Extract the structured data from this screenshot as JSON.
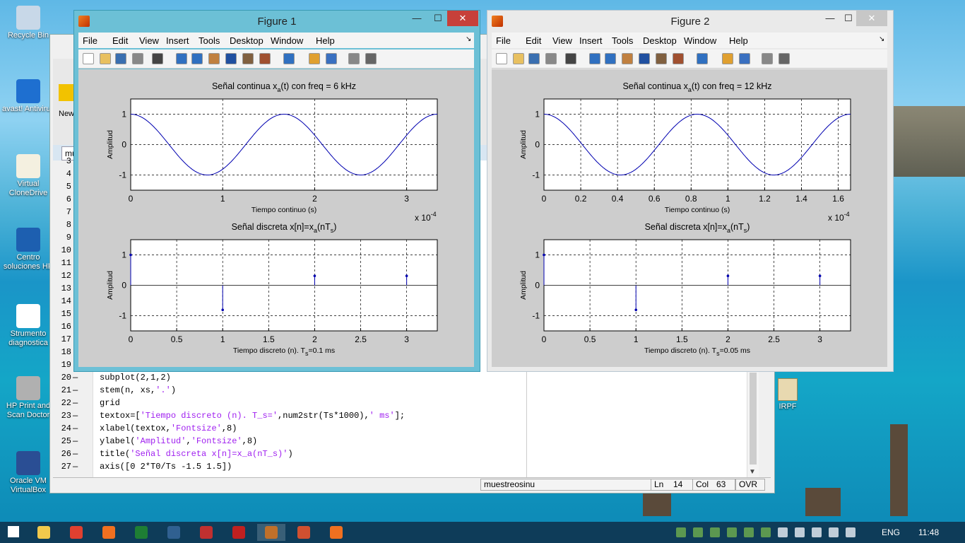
{
  "desktop": {
    "icons": [
      {
        "label": "Recycle Bin",
        "icon": "recycle-bin-icon",
        "color": "#c8d8e8"
      },
      {
        "label": "avast! Antivirus",
        "icon": "avast-icon",
        "color": "#1e6fd0"
      },
      {
        "label": "Virtual CloneDrive",
        "icon": "sheep-icon",
        "color": "#f4f0e0"
      },
      {
        "label": "Centro soluciones HP",
        "icon": "hp-icon",
        "color": "#1d5fb0"
      },
      {
        "label": "Strumento diagnostica",
        "icon": "document-icon",
        "color": "#ffffff"
      },
      {
        "label": "HP Print and Scan Doctor",
        "icon": "printer-icon",
        "color": "#b0b0b0"
      },
      {
        "label": "Oracle VM VirtualBox",
        "icon": "virtualbox-icon",
        "color": "#2a4e94"
      }
    ],
    "right_icon": {
      "label": "IRPF",
      "icon": "folder-icon"
    }
  },
  "editor": {
    "tab_label": "mu",
    "ribbon_new_label": "New",
    "status": {
      "file": "muestreosinu",
      "ln_label": "Ln",
      "ln": "14",
      "col_label": "Col",
      "col": "63",
      "mode": "OVR"
    },
    "line_numbers": [
      "3",
      "4",
      "5",
      "6",
      "7",
      "8",
      "9",
      "10",
      "11",
      "12",
      "13",
      "14",
      "15",
      "16",
      "17",
      "18",
      "19",
      "20",
      "21",
      "22",
      "23",
      "24",
      "25",
      "26",
      "27"
    ],
    "code_lines": [
      {
        "n": "20",
        "parts": [
          {
            "t": "subplot(2,1,2)",
            "s": false
          }
        ]
      },
      {
        "n": "21",
        "parts": [
          {
            "t": "stem(n, xs,",
            "s": false
          },
          {
            "t": "'.'",
            "s": true
          },
          {
            "t": ")",
            "s": false
          }
        ]
      },
      {
        "n": "22",
        "parts": [
          {
            "t": "grid",
            "s": false
          }
        ]
      },
      {
        "n": "23",
        "parts": [
          {
            "t": "textox=[",
            "s": false
          },
          {
            "t": "'Tiempo discreto (n). T_s='",
            "s": true
          },
          {
            "t": ",num2str(Ts*1000),",
            "s": false
          },
          {
            "t": "' ms'",
            "s": true
          },
          {
            "t": "];",
            "s": false
          }
        ]
      },
      {
        "n": "24",
        "parts": [
          {
            "t": "xlabel(textox,",
            "s": false
          },
          {
            "t": "'Fontsize'",
            "s": true
          },
          {
            "t": ",8)",
            "s": false
          }
        ]
      },
      {
        "n": "25",
        "parts": [
          {
            "t": "ylabel(",
            "s": false
          },
          {
            "t": "'Amplitud'",
            "s": true
          },
          {
            "t": ",",
            "s": false
          },
          {
            "t": "'Fontsize'",
            "s": true
          },
          {
            "t": ",8)",
            "s": false
          }
        ]
      },
      {
        "n": "26",
        "parts": [
          {
            "t": "title(",
            "s": false
          },
          {
            "t": "'Señal discreta x[n]=x_a(nT_s)'",
            "s": true
          },
          {
            "t": ")",
            "s": false
          }
        ]
      },
      {
        "n": "27",
        "parts": [
          {
            "t": "axis([0 2*T0/Ts -1.5 1.5])",
            "s": false
          }
        ]
      }
    ]
  },
  "figures": [
    {
      "title": "Figure 1",
      "menu": [
        "File",
        "Edit",
        "View",
        "Insert",
        "Tools",
        "Desktop",
        "Window",
        "Help"
      ],
      "active": true
    },
    {
      "title": "Figure 2",
      "menu": [
        "File",
        "Edit",
        "View",
        "Insert",
        "Tools",
        "Desktop",
        "Window",
        "Help"
      ],
      "active": false
    }
  ],
  "chart_data": [
    {
      "figure": "Figure 1",
      "type": "line",
      "title": "Señal continua x_a(t) con freq = 6 kHz",
      "xlabel": "Tiempo continuo (s)",
      "ylabel": "Amplitud",
      "x_exponent": "x 10^-4",
      "xlim": [
        0,
        3.333
      ],
      "ylim": [
        -1.5,
        1.5
      ],
      "xticks": [
        "0",
        "1",
        "2",
        "3"
      ],
      "xtick_values": [
        0,
        1,
        2,
        3
      ],
      "yticks": [
        "-1",
        "0",
        "1"
      ],
      "grid": true,
      "series": [
        {
          "function": "cos(2*pi*6000*t)",
          "t_scale": 0.0001,
          "freq": 6000
        }
      ]
    },
    {
      "figure": "Figure 1",
      "type": "scatter",
      "title": "Señal discreta x[n]=x_a(nT_s)",
      "xlabel": "Tiempo discreto (n). T_s=0.1 ms",
      "ylabel": "Amplitud",
      "xlim": [
        0,
        3.333
      ],
      "ylim": [
        -1.5,
        1.5
      ],
      "xticks": [
        "0",
        "0.5",
        "1",
        "1.5",
        "2",
        "2.5",
        "3"
      ],
      "xtick_values": [
        0,
        0.5,
        1,
        1.5,
        2,
        2.5,
        3
      ],
      "yticks": [
        "-1",
        "0",
        "1"
      ],
      "grid": true,
      "stem": {
        "n": [
          0,
          1,
          2,
          3
        ],
        "values": [
          1,
          -0.809,
          0.309,
          0.309
        ]
      }
    },
    {
      "figure": "Figure 2",
      "type": "line",
      "title": "Señal continua x_a(t) con freq = 12 kHz",
      "xlabel": "Tiempo continuo (s)",
      "ylabel": "Amplitud",
      "x_exponent": "x 10^-4",
      "xlim": [
        0,
        1.667
      ],
      "ylim": [
        -1.5,
        1.5
      ],
      "xticks": [
        "0",
        "0.2",
        "0.4",
        "0.6",
        "0.8",
        "1",
        "1.2",
        "1.4",
        "1.6"
      ],
      "xtick_values": [
        0,
        0.2,
        0.4,
        0.6,
        0.8,
        1,
        1.2,
        1.4,
        1.6
      ],
      "yticks": [
        "-1",
        "0",
        "1"
      ],
      "grid": true,
      "series": [
        {
          "function": "cos(2*pi*12000*t)",
          "t_scale": 0.0001,
          "freq": 12000
        }
      ]
    },
    {
      "figure": "Figure 2",
      "type": "scatter",
      "title": "Señal discreta x[n]=x_a(nT_s)",
      "xlabel": "Tiempo discreto (n). T_s=0.05 ms",
      "ylabel": "Amplitud",
      "xlim": [
        0,
        3.333
      ],
      "ylim": [
        -1.5,
        1.5
      ],
      "xticks": [
        "0",
        "0.5",
        "1",
        "1.5",
        "2",
        "2.5",
        "3"
      ],
      "xtick_values": [
        0,
        0.5,
        1,
        1.5,
        2,
        2.5,
        3
      ],
      "yticks": [
        "-1",
        "0",
        "1"
      ],
      "grid": true,
      "stem": {
        "n": [
          0,
          1,
          2,
          3
        ],
        "values": [
          1,
          -0.809,
          0.309,
          0.309
        ]
      }
    }
  ],
  "taskbar": {
    "apps": [
      {
        "name": "start-icon"
      },
      {
        "name": "file-explorer-icon"
      },
      {
        "name": "chrome-icon"
      },
      {
        "name": "firefox-icon"
      },
      {
        "name": "excel-icon"
      },
      {
        "name": "app-icon"
      },
      {
        "name": "toolbox-icon"
      },
      {
        "name": "acrobat-icon"
      },
      {
        "name": "matlab-icon"
      },
      {
        "name": "app2-icon"
      },
      {
        "name": "firefox2-icon"
      }
    ],
    "lang": "ENG",
    "time": "11:48"
  }
}
